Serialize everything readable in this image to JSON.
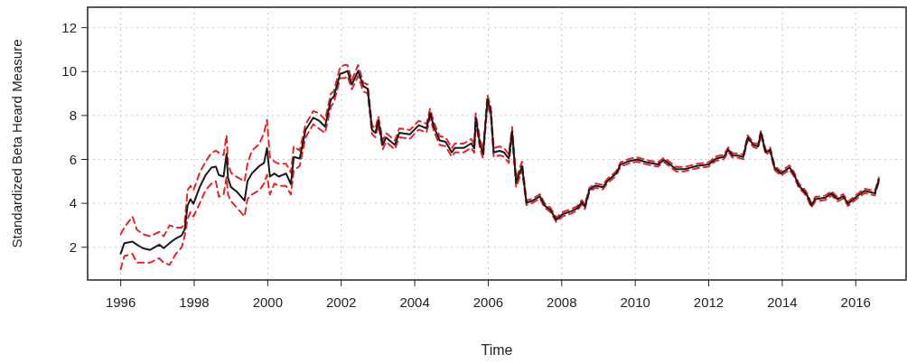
{
  "chart_data": {
    "type": "line",
    "xlabel": "Time",
    "ylabel": "Standardized Beta Heard Measure",
    "xlim": [
      1995.1,
      2017.37
    ],
    "ylim": [
      0.51,
      12.93
    ],
    "xticks": [
      1996,
      1998,
      2000,
      2002,
      2004,
      2006,
      2008,
      2010,
      2012,
      2014,
      2016
    ],
    "yticks": [
      2,
      4,
      6,
      8,
      10,
      12
    ],
    "grid": true,
    "x": [
      1996.0,
      1996.1,
      1996.32,
      1996.44,
      1996.6,
      1996.8,
      1997.05,
      1997.17,
      1997.33,
      1997.5,
      1997.66,
      1997.74,
      1997.82,
      1997.9,
      1997.98,
      1998.15,
      1998.31,
      1998.47,
      1998.59,
      1998.67,
      1998.8,
      1998.88,
      1998.92,
      1999.0,
      1999.16,
      1999.37,
      1999.45,
      1999.57,
      1999.77,
      1999.9,
      1999.98,
      2000.06,
      2000.18,
      2000.3,
      2000.5,
      2000.63,
      2000.71,
      2000.87,
      2001.03,
      2001.24,
      2001.4,
      2001.56,
      2001.72,
      2001.8,
      2001.97,
      2002.09,
      2002.17,
      2002.29,
      2002.46,
      2002.6,
      2002.72,
      2002.84,
      2002.93,
      2003.01,
      2003.13,
      2003.22,
      2003.46,
      2003.58,
      2003.87,
      2004.11,
      2004.32,
      2004.42,
      2004.52,
      2004.68,
      2004.84,
      2005.01,
      2005.09,
      2005.33,
      2005.54,
      2005.62,
      2005.66,
      2005.78,
      2005.86,
      2005.98,
      2006.07,
      2006.15,
      2006.31,
      2006.43,
      2006.56,
      2006.65,
      2006.76,
      2006.92,
      2007.04,
      2007.21,
      2007.41,
      2007.53,
      2007.69,
      2007.85,
      2008.02,
      2008.26,
      2008.42,
      2008.55,
      2008.63,
      2008.75,
      2008.91,
      2009.12,
      2009.24,
      2009.48,
      2009.6,
      2009.81,
      2010.05,
      2010.29,
      2010.62,
      2010.78,
      2011.11,
      2011.35,
      2011.68,
      2012.0,
      2012.2,
      2012.41,
      2012.53,
      2012.65,
      2012.81,
      2012.94,
      2013.06,
      2013.22,
      2013.34,
      2013.42,
      2013.55,
      2013.67,
      2013.79,
      2013.96,
      2014.2,
      2014.33,
      2014.45,
      2014.61,
      2014.69,
      2014.79,
      2014.9,
      2015.18,
      2015.34,
      2015.5,
      2015.66,
      2015.79,
      2015.99,
      2016.24,
      2016.52,
      2016.63
    ],
    "series": [
      {
        "color": "#e3262b",
        "line_style": "dashed",
        "values": [
          2.6,
          2.9,
          3.4,
          2.8,
          2.6,
          2.5,
          2.7,
          2.5,
          3.0,
          2.9,
          2.9,
          3.1,
          4.6,
          4.8,
          4.6,
          5.4,
          5.9,
          6.3,
          6.4,
          6.3,
          6.2,
          7.1,
          5.8,
          5.4,
          5.2,
          5.0,
          5.8,
          6.4,
          6.7,
          7.2,
          7.8,
          6.1,
          5.9,
          5.8,
          5.8,
          5.4,
          6.6,
          6.4,
          7.6,
          8.2,
          8.1,
          7.8,
          9.0,
          9.1,
          10.2,
          10.3,
          10.3,
          9.6,
          10.3,
          9.5,
          9.41,
          7.55,
          7.41,
          7.96,
          6.86,
          7.2,
          6.86,
          7.41,
          7.34,
          7.76,
          7.62,
          8.31,
          7.69,
          7.06,
          7.0,
          6.52,
          6.72,
          6.72,
          6.93,
          6.7,
          8.1,
          6.86,
          6.45,
          8.93,
          8.38,
          6.52,
          6.59,
          6.52,
          6.24,
          7.48,
          5.14,
          5.9,
          4.12,
          4.22,
          4.42,
          4.01,
          3.81,
          3.35,
          3.6,
          3.74,
          3.87,
          4.15,
          3.94,
          4.7,
          4.91,
          4.84,
          5.11,
          5.46,
          5.87,
          6.01,
          6.1,
          5.98,
          5.87,
          6.08,
          5.66,
          5.66,
          5.8,
          5.87,
          6.14,
          6.21,
          6.55,
          6.28,
          6.28,
          6.21,
          7.1,
          6.76,
          6.69,
          7.31,
          6.42,
          6.55,
          5.73,
          5.46,
          5.73,
          5.39,
          4.91,
          4.63,
          4.42,
          4.01,
          4.29,
          4.36,
          4.56,
          4.29,
          4.42,
          4.08,
          4.36,
          4.67,
          4.56,
          5.18
        ]
      },
      {
        "color": "#e3262b",
        "line_style": "dashed",
        "values": [
          1.0,
          1.6,
          1.7,
          1.3,
          1.3,
          1.3,
          1.5,
          1.3,
          1.2,
          1.7,
          2.0,
          2.5,
          3.3,
          3.6,
          3.4,
          4.0,
          4.6,
          4.9,
          5.0,
          4.3,
          4.4,
          5.2,
          4.4,
          4.1,
          3.8,
          3.4,
          4.2,
          4.4,
          4.6,
          4.9,
          5.3,
          4.4,
          4.9,
          4.8,
          4.8,
          4.4,
          5.5,
          5.7,
          7.0,
          7.6,
          7.4,
          7.2,
          8.4,
          8.6,
          9.7,
          9.7,
          9.8,
          9.2,
          9.8,
          9.1,
          9.01,
          7.15,
          7.01,
          7.56,
          6.46,
          6.8,
          6.46,
          7.01,
          6.94,
          7.36,
          7.22,
          7.91,
          7.29,
          6.66,
          6.6,
          6.12,
          6.32,
          6.32,
          6.53,
          6.3,
          7.7,
          6.46,
          6.05,
          8.53,
          7.98,
          6.12,
          6.19,
          6.12,
          5.84,
          7.08,
          4.74,
          5.5,
          3.92,
          4.02,
          4.22,
          3.81,
          3.61,
          3.15,
          3.4,
          3.54,
          3.67,
          3.95,
          3.74,
          4.5,
          4.71,
          4.64,
          4.91,
          5.26,
          5.67,
          5.81,
          5.9,
          5.78,
          5.67,
          5.88,
          5.46,
          5.46,
          5.6,
          5.67,
          5.94,
          6.01,
          6.35,
          6.08,
          6.08,
          6.01,
          6.9,
          6.56,
          6.49,
          7.11,
          6.22,
          6.35,
          5.53,
          5.26,
          5.53,
          5.19,
          4.71,
          4.43,
          4.22,
          3.81,
          4.09,
          4.16,
          4.36,
          4.09,
          4.22,
          3.88,
          4.16,
          4.47,
          4.36,
          4.98
        ]
      },
      {
        "color": "#1a1a1a",
        "line_style": "solid",
        "values": [
          1.71,
          2.19,
          2.26,
          2.12,
          1.96,
          1.88,
          2.12,
          1.96,
          2.19,
          2.4,
          2.54,
          2.81,
          3.91,
          4.19,
          3.98,
          4.74,
          5.29,
          5.63,
          5.67,
          5.29,
          5.22,
          6.25,
          5.15,
          4.74,
          4.53,
          4.12,
          5.01,
          5.36,
          5.7,
          5.84,
          6.52,
          5.22,
          5.36,
          5.22,
          5.36,
          4.88,
          6.11,
          6.04,
          7.35,
          7.9,
          7.76,
          7.49,
          8.73,
          8.86,
          9.9,
          9.96,
          10.03,
          9.41,
          10.03,
          9.34,
          9.21,
          7.35,
          7.21,
          7.76,
          6.66,
          7.0,
          6.66,
          7.21,
          7.14,
          7.56,
          7.42,
          8.11,
          7.49,
          6.86,
          6.8,
          6.32,
          6.52,
          6.52,
          6.73,
          6.5,
          7.9,
          6.66,
          6.25,
          8.73,
          8.18,
          6.32,
          6.39,
          6.32,
          6.04,
          7.28,
          4.94,
          5.7,
          4.02,
          4.12,
          4.32,
          3.91,
          3.71,
          3.25,
          3.5,
          3.64,
          3.77,
          4.05,
          3.84,
          4.6,
          4.81,
          4.74,
          5.01,
          5.36,
          5.77,
          5.91,
          6.0,
          5.88,
          5.77,
          5.98,
          5.56,
          5.56,
          5.7,
          5.77,
          6.04,
          6.11,
          6.45,
          6.18,
          6.18,
          6.11,
          7.0,
          6.66,
          6.59,
          7.21,
          6.32,
          6.45,
          5.63,
          5.36,
          5.63,
          5.29,
          4.81,
          4.53,
          4.32,
          3.91,
          4.19,
          4.26,
          4.46,
          4.19,
          4.32,
          3.98,
          4.26,
          4.57,
          4.46,
          5.08
        ]
      }
    ]
  }
}
